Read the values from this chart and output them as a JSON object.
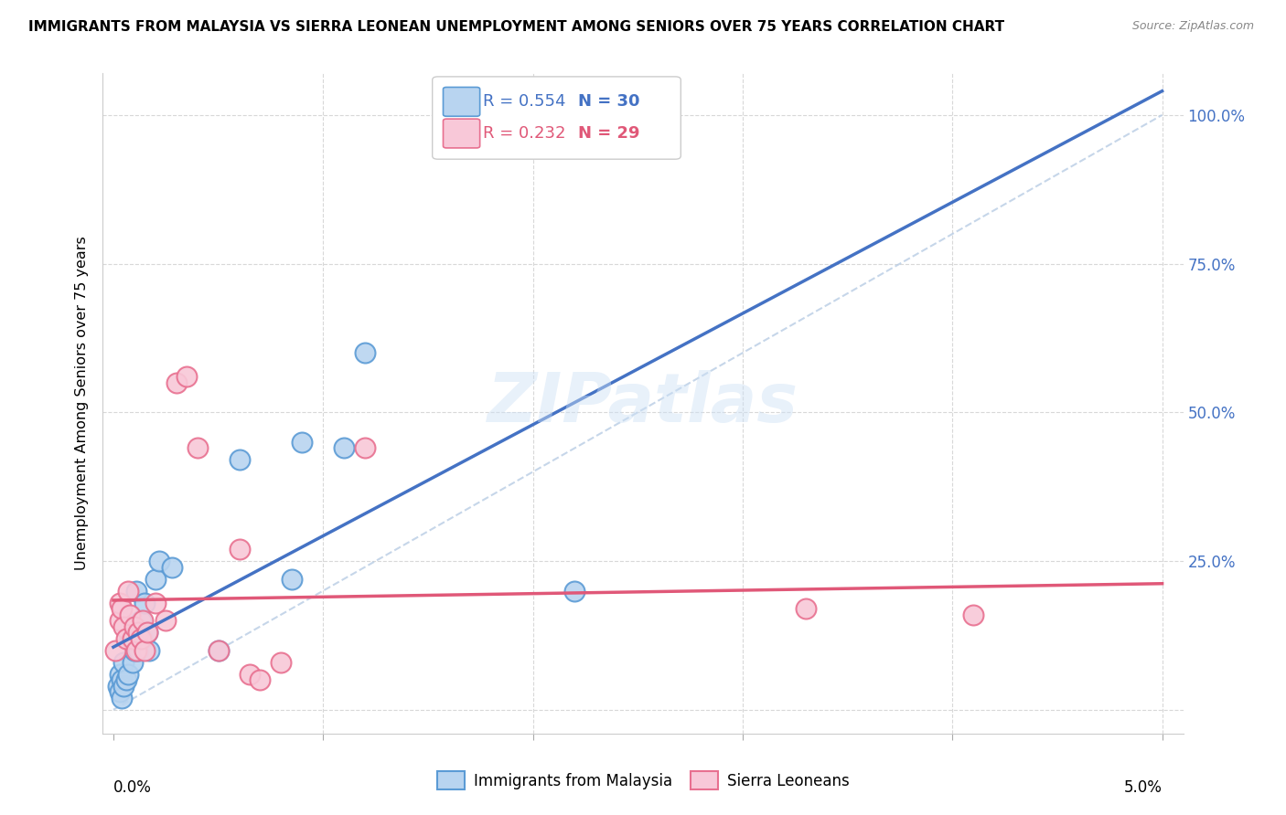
{
  "title": "IMMIGRANTS FROM MALAYSIA VS SIERRA LEONEAN UNEMPLOYMENT AMONG SENIORS OVER 75 YEARS CORRELATION CHART",
  "source": "Source: ZipAtlas.com",
  "ylabel": "Unemployment Among Seniors over 75 years",
  "legend_r1": "R = 0.554",
  "legend_n1": "N = 30",
  "legend_r2": "R = 0.232",
  "legend_n2": "N = 29",
  "color_blue_fill": "#b8d4f0",
  "color_blue_edge": "#5b9bd5",
  "color_blue_line": "#4472c4",
  "color_blue_text": "#4472c4",
  "color_pink_fill": "#f8c8d8",
  "color_pink_edge": "#e87090",
  "color_pink_line": "#e05878",
  "color_pink_text": "#e05878",
  "color_dashed": "#b8cce4",
  "watermark": "ZIPatlas",
  "blue_x": [
    0.0002,
    0.0003,
    0.0003,
    0.0004,
    0.0004,
    0.0005,
    0.0005,
    0.0006,
    0.0007,
    0.0008,
    0.0009,
    0.001,
    0.001,
    0.0011,
    0.0012,
    0.0013,
    0.0014,
    0.0015,
    0.0016,
    0.0017,
    0.002,
    0.0022,
    0.0028,
    0.005,
    0.006,
    0.0085,
    0.009,
    0.011,
    0.012,
    0.022
  ],
  "blue_y": [
    0.04,
    0.06,
    0.03,
    0.05,
    0.02,
    0.08,
    0.04,
    0.05,
    0.06,
    0.12,
    0.08,
    0.1,
    0.14,
    0.2,
    0.1,
    0.15,
    0.12,
    0.18,
    0.13,
    0.1,
    0.22,
    0.25,
    0.24,
    0.1,
    0.42,
    0.22,
    0.45,
    0.44,
    0.6,
    0.2
  ],
  "pink_x": [
    0.0001,
    0.0003,
    0.0003,
    0.0004,
    0.0005,
    0.0006,
    0.0007,
    0.0008,
    0.0009,
    0.001,
    0.0011,
    0.0012,
    0.0013,
    0.0014,
    0.0015,
    0.0016,
    0.002,
    0.0025,
    0.003,
    0.0035,
    0.004,
    0.005,
    0.006,
    0.0065,
    0.007,
    0.008,
    0.012,
    0.033,
    0.041
  ],
  "pink_y": [
    0.1,
    0.15,
    0.18,
    0.17,
    0.14,
    0.12,
    0.2,
    0.16,
    0.12,
    0.14,
    0.1,
    0.13,
    0.12,
    0.15,
    0.1,
    0.13,
    0.18,
    0.15,
    0.55,
    0.56,
    0.44,
    0.1,
    0.27,
    0.06,
    0.05,
    0.08,
    0.44,
    0.17,
    0.16
  ]
}
